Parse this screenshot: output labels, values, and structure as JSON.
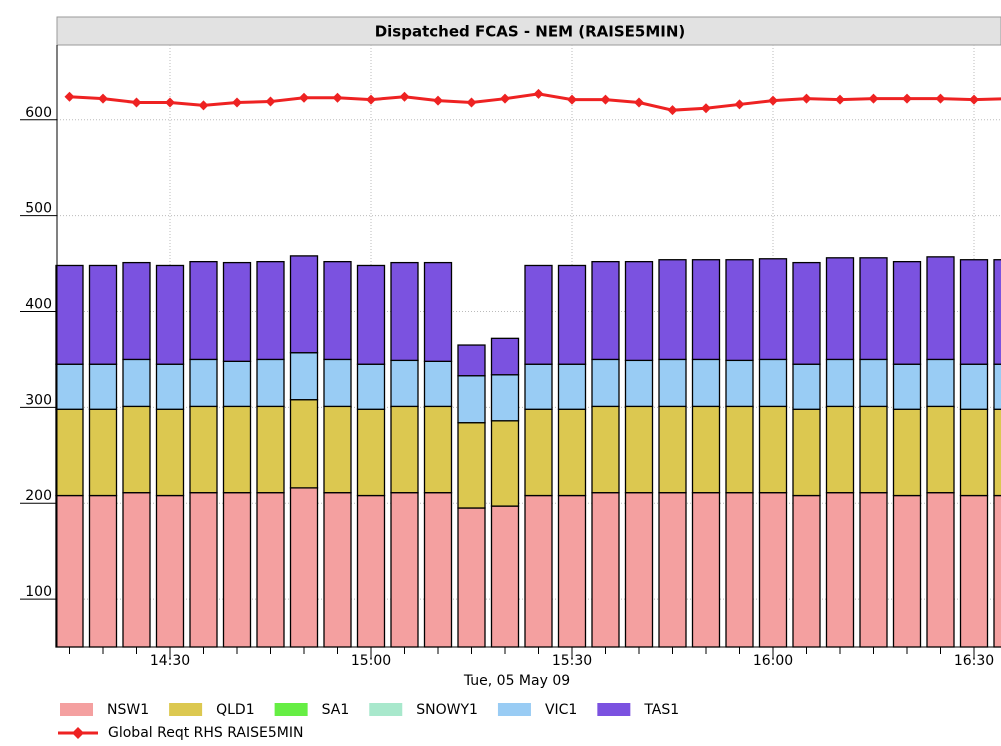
{
  "chart_data": {
    "type": "bar",
    "stacked": true,
    "title": "Dispatched FCAS - NEM (RAISE5MIN)",
    "x_label": "Tue, 05 May 09",
    "categories": [
      null,
      null,
      null,
      "14:30",
      null,
      null,
      null,
      null,
      null,
      "15:00",
      null,
      null,
      null,
      null,
      null,
      "15:30",
      null,
      null,
      null,
      null,
      null,
      "16:00",
      null,
      null,
      null,
      null,
      null,
      "16:30",
      null
    ],
    "series": [
      {
        "name": "NSW1",
        "color": "#f4a0a0",
        "values": [
          208,
          208,
          211,
          208,
          211,
          211,
          211,
          216,
          211,
          208,
          211,
          211,
          195,
          197,
          208,
          208,
          211,
          211,
          211,
          211,
          211,
          211,
          208,
          211,
          211,
          208,
          211,
          208,
          208
        ]
      },
      {
        "name": "QLD1",
        "color": "#dcc850",
        "values": [
          90,
          90,
          90,
          90,
          90,
          90,
          90,
          92,
          90,
          90,
          90,
          90,
          89,
          89,
          90,
          90,
          90,
          90,
          90,
          90,
          90,
          90,
          90,
          90,
          90,
          90,
          90,
          90,
          90
        ]
      },
      {
        "name": "SA1",
        "color": "#66ee44",
        "values": [
          0,
          0,
          0,
          0,
          0,
          0,
          0,
          0,
          0,
          0,
          0,
          0,
          0,
          0,
          0,
          0,
          0,
          0,
          0,
          0,
          0,
          0,
          0,
          0,
          0,
          0,
          0,
          0,
          0
        ]
      },
      {
        "name": "SNOWY1",
        "color": "#a8e8cc",
        "values": [
          0,
          0,
          0,
          0,
          0,
          0,
          0,
          0,
          0,
          0,
          0,
          0,
          0,
          0,
          0,
          0,
          0,
          0,
          0,
          0,
          0,
          0,
          0,
          0,
          0,
          0,
          0,
          0,
          0
        ]
      },
      {
        "name": "VIC1",
        "color": "#99ccf4",
        "values": [
          47,
          47,
          49,
          47,
          49,
          47,
          49,
          49,
          49,
          47,
          48,
          47,
          49,
          48,
          47,
          47,
          49,
          48,
          49,
          49,
          48,
          49,
          47,
          49,
          49,
          47,
          49,
          47,
          47
        ]
      },
      {
        "name": "TAS1",
        "color": "#7b52e0",
        "values": [
          103,
          103,
          101,
          103,
          102,
          103,
          102,
          101,
          102,
          103,
          102,
          103,
          32,
          38,
          103,
          103,
          102,
          103,
          104,
          104,
          105,
          105,
          106,
          106,
          106,
          107,
          107,
          109,
          109
        ]
      },
      {
        "name": "Global Reqt RHS RAISE5MIN",
        "type": "line",
        "color": "#ee2222",
        "values": [
          624,
          622,
          618,
          618,
          615,
          618,
          619,
          623,
          623,
          621,
          624,
          620,
          618,
          622,
          627,
          621,
          621,
          618,
          610,
          612,
          616,
          620,
          622,
          621,
          622,
          622,
          622,
          621,
          622
        ]
      }
    ],
    "ylim": [
      50,
      678
    ],
    "yticks": [
      100,
      200,
      300,
      400,
      500,
      600
    ],
    "grid": true
  }
}
